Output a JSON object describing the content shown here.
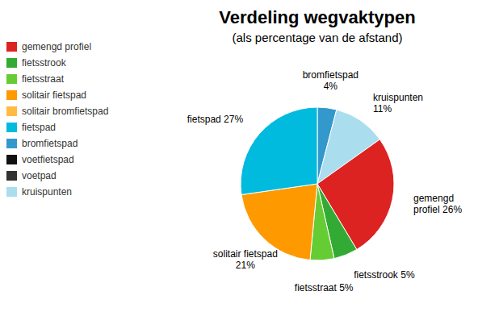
{
  "chart_data": {
    "type": "pie",
    "title": "Verdeling wegvaktypen",
    "subtitle": "(als percentage van de afstand)",
    "categories": [
      "bromfietspad",
      "kruispunten",
      "gemengd profiel",
      "fietsstrook",
      "fietsstraat",
      "solitair fietspad",
      "fietspad"
    ],
    "values": [
      4,
      11,
      26,
      5,
      5,
      21,
      27
    ],
    "colors": [
      "#3399cc",
      "#aaddee",
      "#dd2222",
      "#33aa33",
      "#66cc33",
      "#ff9900",
      "#00bbdd"
    ],
    "value_labels": [
      "bromfietspad\n4%",
      "kruispunten\n11%",
      "gemengd\nprofiel 26%",
      "fietsstrook 5%",
      "fietsstraat 5%",
      "solitair fietspad\n21%",
      "fietspad 27%"
    ],
    "data_labels": true,
    "legend": "upper left",
    "legend_entries": [
      {
        "name": "gemengd profiel",
        "color": "#dd2222"
      },
      {
        "name": "fietsstrook",
        "color": "#33aa33"
      },
      {
        "name": "fietsstraat",
        "color": "#66cc33"
      },
      {
        "name": "solitair fietspad",
        "color": "#ff9900"
      },
      {
        "name": "solitair bromfietspad",
        "color": "#ffbb44"
      },
      {
        "name": "fietspad",
        "color": "#00bbdd"
      },
      {
        "name": "bromfietspad",
        "color": "#3399cc"
      },
      {
        "name": "voetfietspad",
        "color": "#111111"
      },
      {
        "name": "voetpad",
        "color": "#333333"
      },
      {
        "name": "kruispunten",
        "color": "#aaddee"
      }
    ]
  }
}
